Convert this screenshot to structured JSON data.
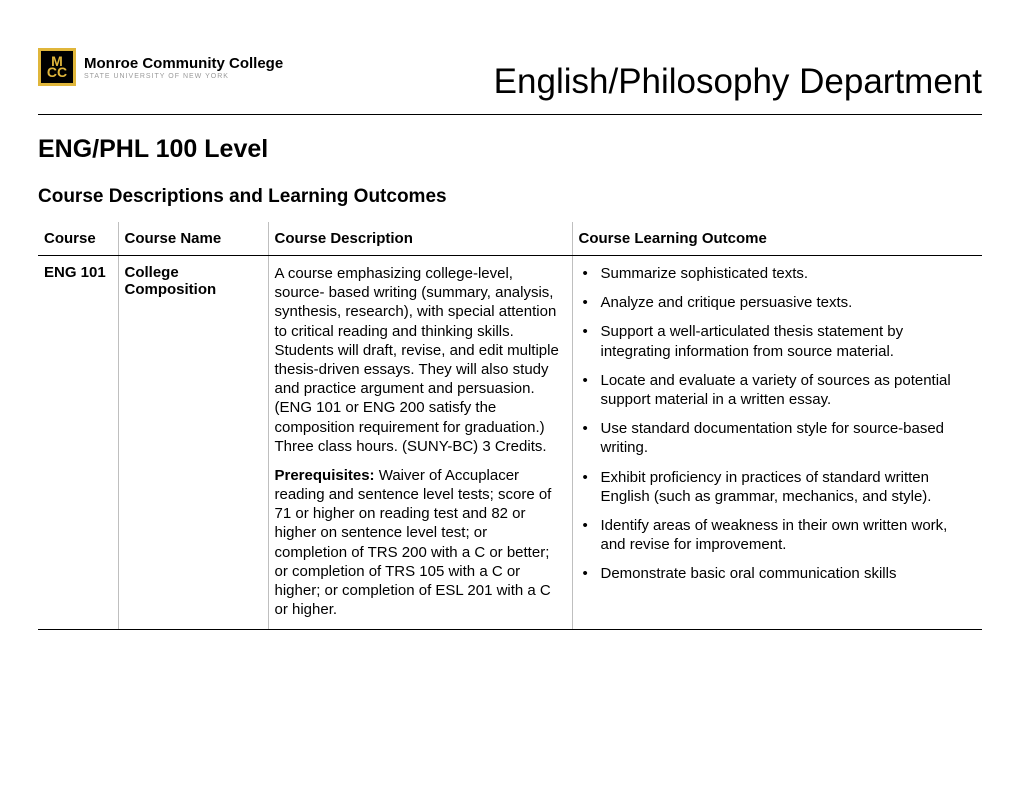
{
  "logo": {
    "abbrev_top": "M",
    "abbrev_bottom": "CC",
    "name": "Monroe Community College",
    "subtitle": "STATE UNIVERSITY OF NEW YORK"
  },
  "department_title": "English/Philosophy Department",
  "level_heading": "ENG/PHL 100 Level",
  "sub_heading": "Course Descriptions and Learning Outcomes",
  "table": {
    "headers": {
      "course": "Course",
      "name": "Course Name",
      "description": "Course Description",
      "outcome": "Course Learning Outcome"
    },
    "row": {
      "code": "ENG 101",
      "name": "College Composition",
      "description_main": "A course emphasizing college-level, source- based writing (summary, analysis, synthesis, research), with special attention to critical reading and thinking skills. Students will draft, revise, and edit multiple thesis-driven essays. They will also study and practice argument and persuasion. (ENG 101 or ENG 200 satisfy the composition requirement for graduation.) Three class hours. (SUNY-BC) 3 Credits.",
      "prereq_label": "Prerequisites:",
      "prereq_text": " Waiver of Accuplacer reading and sentence level tests; score of 71 or higher on reading test and 82 or higher on sentence level test; or completion of TRS 200 with a C or better; or completion of TRS 105 with a C or higher; or completion of ESL 201 with a C or higher.",
      "outcomes": [
        "Summarize sophisticated texts.",
        "Analyze and critique persuasive texts.",
        "Support a well-articulated thesis statement by integrating information from source material.",
        "Locate and evaluate a variety of sources as potential support material in a written essay.",
        "Use standard documentation style for source-based writing.",
        "Exhibit proficiency in practices of standard written English (such as grammar, mechanics, and style).",
        "Identify areas of weakness in their own written work, and revise for improvement.",
        "Demonstrate basic oral communication skills"
      ]
    }
  }
}
